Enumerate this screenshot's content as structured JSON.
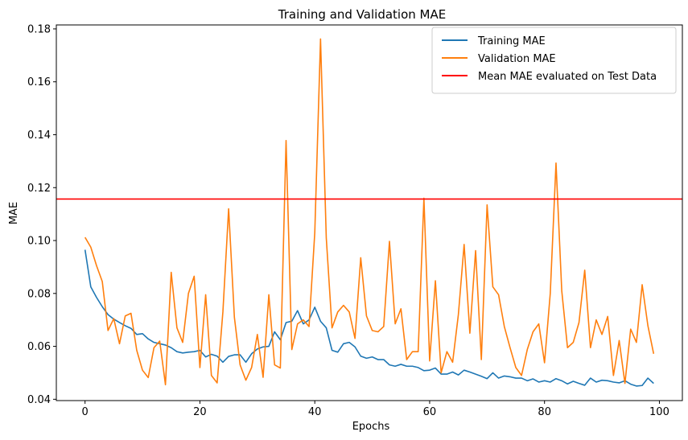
{
  "chart_data": {
    "type": "line",
    "title": "Training and Validation MAE",
    "xlabel": "Epochs",
    "ylabel": "MAE",
    "xlim": [
      -5,
      104
    ],
    "ylim": [
      0.0395,
      0.1815
    ],
    "xticks": [
      0,
      20,
      40,
      60,
      80,
      100
    ],
    "yticks": [
      0.04,
      0.06,
      0.08,
      0.1,
      0.12,
      0.14,
      0.16,
      0.18
    ],
    "ytick_labels": [
      "0.04",
      "0.06",
      "0.08",
      "0.10",
      "0.12",
      "0.14",
      "0.16",
      "0.18"
    ],
    "grid": false,
    "legend_position": "top-right",
    "series": [
      {
        "name": "Training MAE",
        "color": "#1f77b4",
        "x_start": 0,
        "values": [
          0.0965,
          0.0825,
          0.0785,
          0.075,
          0.072,
          0.0703,
          0.069,
          0.0678,
          0.0668,
          0.0645,
          0.0648,
          0.0628,
          0.0615,
          0.061,
          0.0605,
          0.0595,
          0.058,
          0.0575,
          0.0578,
          0.058,
          0.0585,
          0.056,
          0.057,
          0.0563,
          0.054,
          0.0562,
          0.0568,
          0.0568,
          0.054,
          0.0572,
          0.059,
          0.0598,
          0.06,
          0.0655,
          0.0625,
          0.069,
          0.0695,
          0.0735,
          0.0685,
          0.07,
          0.0748,
          0.0695,
          0.067,
          0.0585,
          0.0578,
          0.061,
          0.0615,
          0.0598,
          0.0563,
          0.0555,
          0.056,
          0.055,
          0.055,
          0.053,
          0.0525,
          0.0532,
          0.0525,
          0.0525,
          0.052,
          0.0508,
          0.051,
          0.0518,
          0.0495,
          0.0495,
          0.0503,
          0.0492,
          0.051,
          0.0503,
          0.0495,
          0.0487,
          0.0478,
          0.05,
          0.048,
          0.0488,
          0.0485,
          0.048,
          0.048,
          0.047,
          0.0477,
          0.0465,
          0.047,
          0.0465,
          0.0478,
          0.047,
          0.0458,
          0.0468,
          0.046,
          0.0453,
          0.048,
          0.0465,
          0.0472,
          0.047,
          0.0465,
          0.0462,
          0.047,
          0.0457,
          0.045,
          0.0452,
          0.048,
          0.046
        ]
      },
      {
        "name": "Validation MAE",
        "color": "#ff7f0e",
        "x_start": 0,
        "values": [
          0.1012,
          0.0975,
          0.0905,
          0.0845,
          0.066,
          0.0705,
          0.061,
          0.0715,
          0.0725,
          0.0585,
          0.051,
          0.0482,
          0.0595,
          0.062,
          0.0455,
          0.088,
          0.067,
          0.0615,
          0.08,
          0.0865,
          0.052,
          0.0795,
          0.049,
          0.0462,
          0.073,
          0.112,
          0.071,
          0.053,
          0.0472,
          0.052,
          0.0645,
          0.0483,
          0.0795,
          0.053,
          0.0518,
          0.1378,
          0.0588,
          0.0685,
          0.07,
          0.0675,
          0.103,
          0.1762,
          0.101,
          0.067,
          0.073,
          0.0755,
          0.073,
          0.063,
          0.0935,
          0.0715,
          0.066,
          0.0655,
          0.0675,
          0.0997,
          0.0685,
          0.0742,
          0.055,
          0.058,
          0.058,
          0.116,
          0.0545,
          0.0848,
          0.05,
          0.058,
          0.054,
          0.072,
          0.0985,
          0.065,
          0.0962,
          0.055,
          0.1135,
          0.0825,
          0.0795,
          0.0675,
          0.0595,
          0.052,
          0.049,
          0.0588,
          0.0655,
          0.0685,
          0.0538,
          0.08,
          0.1293,
          0.081,
          0.0595,
          0.0615,
          0.069,
          0.0888,
          0.0595,
          0.07,
          0.0645,
          0.0713,
          0.049,
          0.0622,
          0.046,
          0.0665,
          0.0615,
          0.0833,
          0.0678,
          0.0572
        ]
      },
      {
        "name": "Mean MAE evaluated on Test Data",
        "color": "#ff0000",
        "type": "hline",
        "value": 0.1157
      }
    ]
  }
}
